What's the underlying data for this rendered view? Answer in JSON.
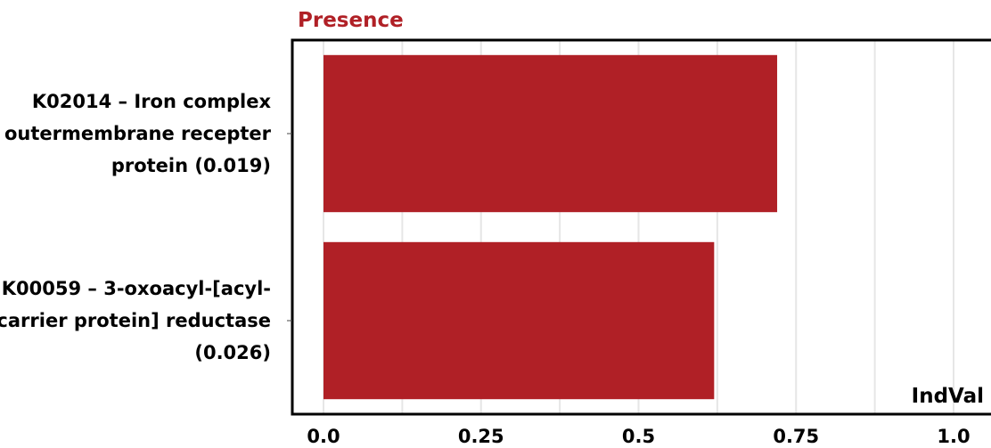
{
  "chart_data": {
    "type": "bar",
    "orientation": "horizontal",
    "title": "Presence",
    "xlabel": "IndVal",
    "ylabel": "",
    "xlim": [
      0,
      1.0
    ],
    "xticks": [
      "0.0",
      "0.25",
      "0.5",
      "0.75",
      "1.0"
    ],
    "xtick_values": [
      0,
      0.25,
      0.5,
      0.75,
      1.0
    ],
    "categories": [
      [
        "K02014 – Iron complex",
        "outermembrane recepter",
        "protein (0.019)"
      ],
      [
        "K00059 – 3-oxoacyl-[acyl-",
        "carrier protein] reductase",
        "(0.026)"
      ]
    ],
    "values": [
      0.72,
      0.62
    ],
    "grid": true,
    "colors": {
      "bar": "#b02026",
      "title": "#b02026",
      "grid": "#e6e6e6",
      "frame": "#000000"
    }
  }
}
